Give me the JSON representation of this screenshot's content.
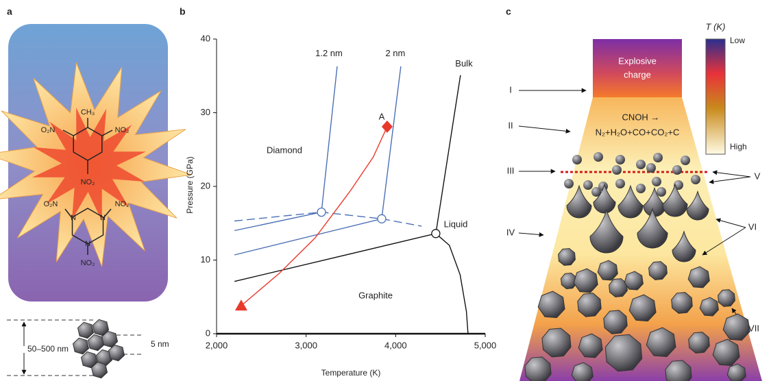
{
  "panel_a": {
    "label": "a",
    "molecule_labels": [
      "CH₃",
      "O₂N",
      "NO₂",
      "NO₂",
      "O₂N",
      "NO₂",
      "N",
      "N",
      "N",
      "NO₂"
    ],
    "scale_labels": [
      "50–500 nm",
      "5 nm"
    ]
  },
  "chart_data": {
    "type": "line",
    "label": "b",
    "x_label": "Temperature (K)",
    "y_label": "Pressure (GPa)",
    "xlim": [
      2000,
      5000
    ],
    "ylim": [
      0,
      40
    ],
    "xticks": [
      {
        "value": 2000,
        "label": "2,000"
      },
      {
        "value": 3000,
        "label": "3,000"
      },
      {
        "value": 4000,
        "label": "4,000"
      },
      {
        "value": 5000,
        "label": "5,000"
      }
    ],
    "yticks": [
      0,
      10,
      20,
      30,
      40
    ],
    "series": [
      {
        "name": "Bulk",
        "color": "#111111",
        "x": [
          4448,
          4724
        ],
        "values": [
          13.6,
          35.1
        ]
      },
      {
        "name": "2 nm",
        "color": "#4a6fb5",
        "x": [
          2200,
          3844,
          4058
        ],
        "values": [
          10.7,
          15.6,
          36.3
        ]
      },
      {
        "name": "1.2 nm",
        "color": "#4a6fb5",
        "x": [
          2200,
          3171,
          3347
        ],
        "values": [
          14.0,
          16.5,
          36.3
        ]
      },
      {
        "color": "#111111",
        "x": [
          2200,
          4448
        ],
        "values": [
          7.1,
          13.6
        ]
      },
      {
        "color": "#111111",
        "x": [
          4448,
          4600,
          4720,
          4790,
          4808
        ],
        "values": [
          13.6,
          12,
          8,
          3,
          0
        ]
      },
      {
        "color": "#4a6fb5",
        "dashed": true,
        "x": [
          2200,
          3171,
          3844,
          4290
        ],
        "values": [
          15.3,
          16.5,
          15.6,
          14.6
        ]
      },
      {
        "name": "A",
        "color": "#e8392b",
        "x": [
          2275,
          2700,
          3100,
          3500,
          3750,
          3905
        ],
        "values": [
          3.8,
          8.2,
          13,
          19.5,
          24,
          28.1
        ]
      }
    ],
    "open_circles": {
      "x": [
        3171,
        3844,
        4448
      ],
      "values": [
        16.5,
        15.6,
        13.6
      ]
    },
    "annotations": [
      "Diamond",
      "Graphite",
      "Liquid"
    ]
  },
  "panel_c": {
    "label": "c",
    "charge": [
      "Explosive",
      "charge"
    ],
    "colorbar": {
      "title": "T (K)",
      "low": "Low",
      "high": "High"
    },
    "reaction": [
      "CNOH →",
      "N₂+H₂O+CO+CO₂+C"
    ],
    "stages": [
      "I",
      "II",
      "III",
      "IV",
      "V",
      "VI",
      "VII"
    ]
  }
}
